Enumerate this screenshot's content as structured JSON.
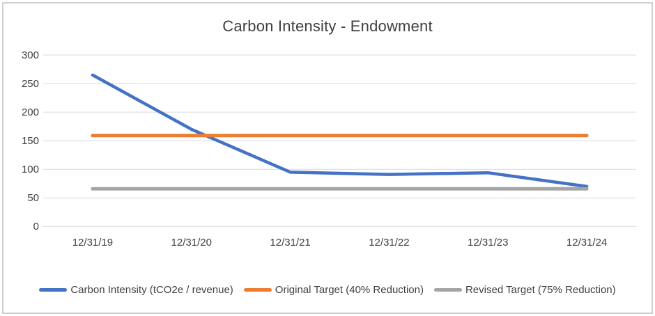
{
  "chart_data": {
    "type": "line",
    "title": "Carbon Intensity - Endowment",
    "categories": [
      "12/31/19",
      "12/31/20",
      "12/31/21",
      "12/31/22",
      "12/31/23",
      "12/31/24"
    ],
    "series": [
      {
        "name": "Carbon Intensity (tCO2e / revenue)",
        "values": [
          265,
          170,
          95,
          91,
          94,
          70
        ],
        "color": "#4472C4"
      },
      {
        "name": "Original Target (40% Reduction)",
        "values": [
          159,
          159,
          159,
          159,
          159,
          159
        ],
        "color": "#ED7D31"
      },
      {
        "name": "Revised Target (75% Reduction)",
        "values": [
          66,
          66,
          66,
          66,
          66,
          66
        ],
        "color": "#A5A5A5"
      }
    ],
    "ylim": [
      0,
      300
    ],
    "yticks": [
      0,
      50,
      100,
      150,
      200,
      250,
      300
    ],
    "xlabel": "",
    "ylabel": "",
    "grid": "horizontal",
    "legend_position": "bottom"
  },
  "colors": {
    "gridline": "#D9D9D9",
    "axis_text": "#404040",
    "title_text": "#404040",
    "frame_border": "#CDD0D3",
    "background": "#FFFFFF"
  }
}
